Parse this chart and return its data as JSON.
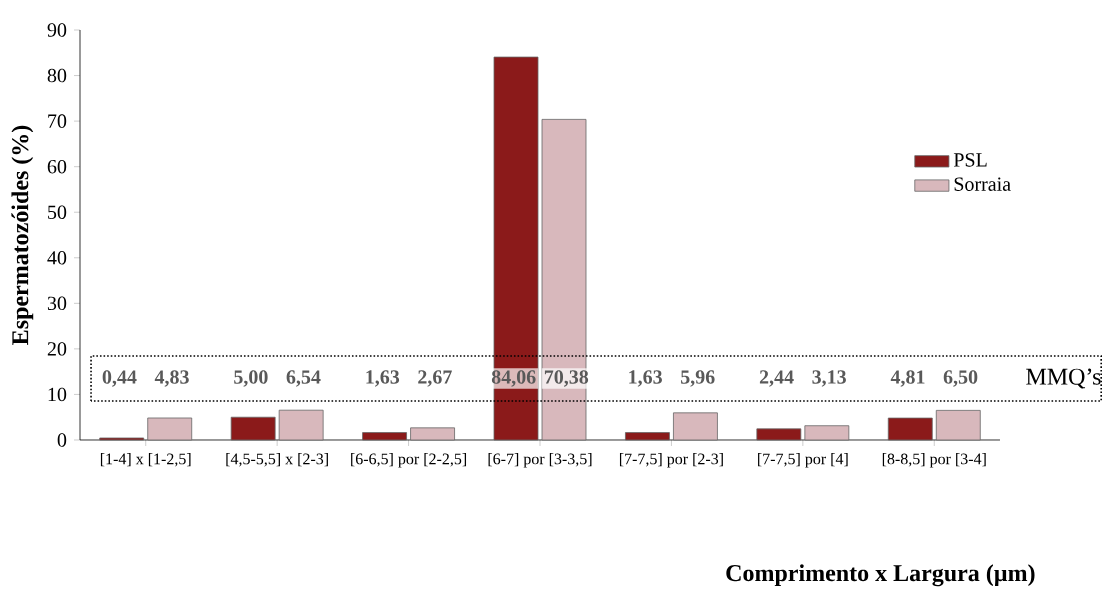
{
  "chart_data": {
    "type": "bar",
    "xlabel": "Comprimento x Largura (µm)",
    "ylabel": "Espermatozóides (%)",
    "categories": [
      "[1-4] x [1-2,5]",
      "[4,5-5,5] x [2-3]",
      "[6-6,5] por [2-2,5]",
      "[6-7] por [3-3,5]",
      "[7-7,5] por [2-3]",
      "[7-7,5] por [4]",
      "[8-8,5] por [3-4]"
    ],
    "series": [
      {
        "name": "PSL",
        "color": "#8b1a1a",
        "values": [
          0.44,
          5.0,
          1.63,
          84.06,
          1.63,
          2.44,
          4.81
        ],
        "value_labels": [
          "0,44",
          "5,00",
          "1,63",
          "84,06",
          "1,63",
          "2,44",
          "4,81"
        ]
      },
      {
        "name": "Sorraia",
        "color": "#d8b8bc",
        "values": [
          4.83,
          6.54,
          2.67,
          70.38,
          5.96,
          3.13,
          6.5
        ],
        "value_labels": [
          "4,83",
          "6,54",
          "2,67",
          "70,38",
          "5,96",
          "3,13",
          "6,50"
        ]
      }
    ],
    "annotations": [
      "MMQ’s"
    ],
    "ylim": [
      0,
      90
    ],
    "yticks": [
      0,
      10,
      20,
      30,
      40,
      50,
      60,
      70,
      80,
      90
    ],
    "grid": false,
    "legend": "right"
  }
}
